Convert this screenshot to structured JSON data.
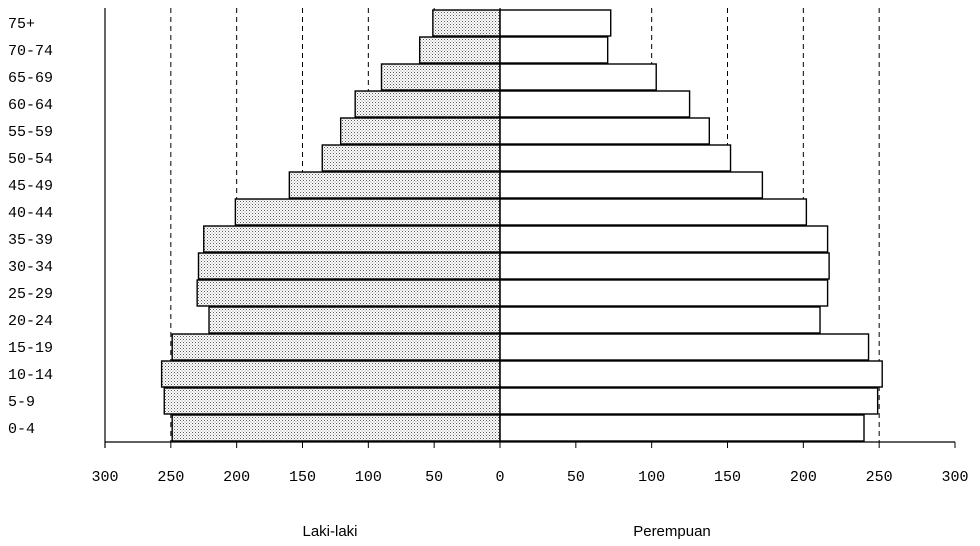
{
  "chart_data": {
    "type": "bar",
    "orientation": "horizontal",
    "categories": [
      "0-4",
      "5-9",
      "10-14",
      "15-19",
      "20-24",
      "25-29",
      "30-34",
      "35-39",
      "40-44",
      "45-49",
      "50-54",
      "55-59",
      "60-64",
      "65-69",
      "70-74",
      "75+"
    ],
    "series": [
      {
        "name": "Laki-laki",
        "values": [
          249,
          255,
          257,
          249,
          221,
          230,
          229,
          225,
          201,
          160,
          135,
          121,
          110,
          90,
          61,
          51
        ],
        "side": "left",
        "pattern": "dotted-gray"
      },
      {
        "name": "Perempuan",
        "values": [
          240,
          249,
          252,
          243,
          211,
          216,
          217,
          216,
          202,
          173,
          152,
          138,
          125,
          103,
          71,
          73
        ],
        "side": "right",
        "pattern": "white"
      }
    ],
    "xticks": [
      "300",
      "250",
      "200",
      "150",
      "100",
      "50",
      "0",
      "50",
      "100",
      "150",
      "200",
      "250",
      "300"
    ],
    "xlim": [
      -300,
      300
    ],
    "grid_dashed_at": [
      -250,
      -200,
      -150,
      -100,
      -50,
      100,
      150,
      200,
      250
    ],
    "left_label": "Laki-laki",
    "right_label": "Perempuan"
  }
}
